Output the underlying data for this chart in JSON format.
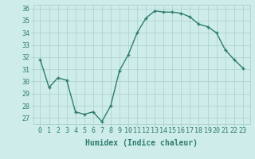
{
  "x": [
    0,
    1,
    2,
    3,
    4,
    5,
    6,
    7,
    8,
    9,
    10,
    11,
    12,
    13,
    14,
    15,
    16,
    17,
    18,
    19,
    20,
    21,
    22,
    23
  ],
  "y": [
    31.8,
    29.5,
    30.3,
    30.1,
    27.5,
    27.3,
    27.5,
    26.7,
    28.0,
    30.9,
    32.2,
    34.0,
    35.2,
    35.8,
    35.7,
    35.7,
    35.6,
    35.3,
    34.7,
    34.5,
    34.0,
    32.6,
    31.8,
    31.1
  ],
  "line_color": "#2e7d6e",
  "marker": "+",
  "marker_size": 3.5,
  "line_width": 1.0,
  "bg_color": "#ceecea",
  "grid_color": "#b0d4d0",
  "xlabel": "Humidex (Indice chaleur)",
  "xlabel_fontsize": 7,
  "tick_fontsize": 6,
  "ylim": [
    27,
    36
  ],
  "yticks": [
    27,
    28,
    29,
    30,
    31,
    32,
    33,
    34,
    35,
    36
  ],
  "xticks": [
    0,
    1,
    2,
    3,
    4,
    5,
    6,
    7,
    8,
    9,
    10,
    11,
    12,
    13,
    14,
    15,
    16,
    17,
    18,
    19,
    20,
    21,
    22,
    23
  ]
}
